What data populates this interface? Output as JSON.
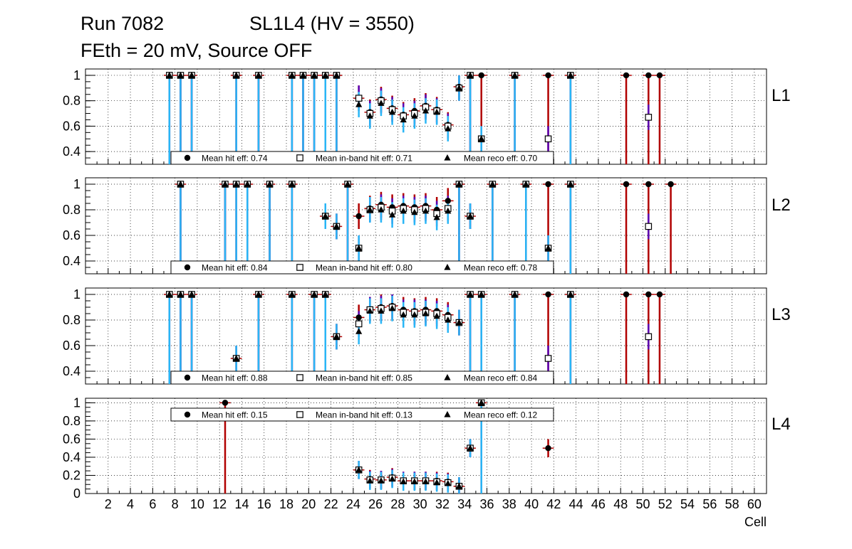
{
  "header": {
    "run": "Run 7082",
    "chamber": "SL1L4 (HV = 3550)",
    "conditions": "FEth = 20 mV, Source OFF"
  },
  "colors": {
    "hit": "#000000",
    "hit_err": "#b10000",
    "inband_err": "#5a00b4",
    "reco_err": "#29b6f6",
    "grid": "#000000"
  },
  "chart_data": [
    {
      "type": "scatter",
      "panel": "L1",
      "xlabel": "Cell",
      "xlim": [
        0,
        61
      ],
      "ylim": [
        0.3,
        1.05
      ],
      "yticks": [
        0.4,
        0.6,
        0.8,
        1
      ],
      "ytick_labels": [
        "0.4",
        "0.6",
        "0.8",
        "1"
      ],
      "legend": [
        {
          "marker": "circle",
          "label": "Mean hit  eff: 0.74"
        },
        {
          "marker": "square",
          "label": "Mean in-band hit eff: 0.71"
        },
        {
          "marker": "triangle",
          "label": "Mean reco eff: 0.70"
        }
      ],
      "points": [
        {
          "cell": 7.5,
          "hit": 1,
          "inband": 1,
          "reco": 1
        },
        {
          "cell": 8.5,
          "hit": 1,
          "inband": 1,
          "reco": 1
        },
        {
          "cell": 9.5,
          "hit": 1,
          "inband": 1,
          "reco": 1
        },
        {
          "cell": 13.5,
          "hit": 1,
          "inband": 1,
          "reco": 1
        },
        {
          "cell": 15.5,
          "hit": 1,
          "inband": 1,
          "reco": 1
        },
        {
          "cell": 18.5,
          "hit": 1,
          "inband": 1,
          "reco": 1
        },
        {
          "cell": 19.5,
          "hit": 1,
          "inband": 1,
          "reco": 1
        },
        {
          "cell": 20.5,
          "hit": 1,
          "inband": 1,
          "reco": 1
        },
        {
          "cell": 21.5,
          "hit": 1,
          "inband": 1,
          "reco": 1
        },
        {
          "cell": 22.5,
          "hit": 1,
          "inband": 1,
          "reco": 1
        },
        {
          "cell": 24.5,
          "hit": 0.82,
          "inband": 0.82,
          "reco": 0.77
        },
        {
          "cell": 25.5,
          "hit": 0.71,
          "inband": 0.7,
          "reco": 0.68
        },
        {
          "cell": 26.5,
          "hit": 0.81,
          "inband": 0.8,
          "reco": 0.78
        },
        {
          "cell": 27.5,
          "hit": 0.74,
          "inband": 0.73,
          "reco": 0.71
        },
        {
          "cell": 28.5,
          "hit": 0.69,
          "inband": 0.68,
          "reco": 0.65
        },
        {
          "cell": 29.5,
          "hit": 0.72,
          "inband": 0.7,
          "reco": 0.68
        },
        {
          "cell": 30.5,
          "hit": 0.76,
          "inband": 0.75,
          "reco": 0.72
        },
        {
          "cell": 31.5,
          "hit": 0.73,
          "inband": 0.72,
          "reco": 0.71
        },
        {
          "cell": 32.5,
          "hit": 0.61,
          "inband": 0.6,
          "reco": 0.58
        },
        {
          "cell": 33.5,
          "hit": 0.91,
          "inband": 0.9,
          "reco": 0.9
        },
        {
          "cell": 34.5,
          "hit": 1,
          "inband": 1,
          "reco": 1
        },
        {
          "cell": 35.5,
          "hit": 1,
          "inband": 0.5,
          "reco": 0.5
        },
        {
          "cell": 38.5,
          "hit": 1,
          "inband": 1,
          "reco": 1
        },
        {
          "cell": 41.5,
          "hit": 1,
          "inband": 0.5,
          "reco": null
        },
        {
          "cell": 43.5,
          "hit": 1,
          "inband": 1,
          "reco": 1
        },
        {
          "cell": 48.5,
          "hit": 1,
          "inband": null,
          "reco": null
        },
        {
          "cell": 50.5,
          "hit": 1,
          "inband": 0.67,
          "reco": null
        },
        {
          "cell": 51.5,
          "hit": 1,
          "inband": null,
          "reco": null
        }
      ]
    },
    {
      "type": "scatter",
      "panel": "L2",
      "xlabel": "Cell",
      "xlim": [
        0,
        61
      ],
      "ylim": [
        0.3,
        1.05
      ],
      "yticks": [
        0.4,
        0.6,
        0.8,
        1
      ],
      "ytick_labels": [
        "0.4",
        "0.6",
        "0.8",
        "1"
      ],
      "legend": [
        {
          "marker": "circle",
          "label": "Mean hit  eff: 0.84"
        },
        {
          "marker": "square",
          "label": "Mean in-band hit eff: 0.80"
        },
        {
          "marker": "triangle",
          "label": "Mean reco eff: 0.78"
        }
      ],
      "points": [
        {
          "cell": 8.5,
          "hit": 1,
          "inband": 1,
          "reco": 1
        },
        {
          "cell": 12.5,
          "hit": 1,
          "inband": 1,
          "reco": 1
        },
        {
          "cell": 13.5,
          "hit": 1,
          "inband": 1,
          "reco": 1
        },
        {
          "cell": 14.5,
          "hit": 1,
          "inband": 1,
          "reco": 1
        },
        {
          "cell": 16.5,
          "hit": 1,
          "inband": 1,
          "reco": 1
        },
        {
          "cell": 18.5,
          "hit": 1,
          "inband": 1,
          "reco": 1
        },
        {
          "cell": 21.5,
          "hit": 0.75,
          "inband": 0.75,
          "reco": 0.75
        },
        {
          "cell": 22.5,
          "hit": 0.67,
          "inband": 0.67,
          "reco": 0.67
        },
        {
          "cell": 23.5,
          "hit": 1,
          "inband": 1,
          "reco": 1
        },
        {
          "cell": 24.5,
          "hit": 0.75,
          "inband": 0.5,
          "reco": 0.5
        },
        {
          "cell": 25.5,
          "hit": 0.81,
          "inband": 0.8,
          "reco": 0.8
        },
        {
          "cell": 26.5,
          "hit": 0.84,
          "inband": 0.82,
          "reco": 0.8
        },
        {
          "cell": 27.5,
          "hit": 0.82,
          "inband": 0.79,
          "reco": 0.76
        },
        {
          "cell": 28.5,
          "hit": 0.83,
          "inband": 0.81,
          "reco": 0.79
        },
        {
          "cell": 29.5,
          "hit": 0.82,
          "inband": 0.8,
          "reco": 0.78
        },
        {
          "cell": 30.5,
          "hit": 0.83,
          "inband": 0.81,
          "reco": 0.79
        },
        {
          "cell": 31.5,
          "hit": 0.8,
          "inband": 0.77,
          "reco": 0.74
        },
        {
          "cell": 32.5,
          "hit": 0.87,
          "inband": 0.81,
          "reco": 0.79
        },
        {
          "cell": 33.5,
          "hit": 1,
          "inband": 1,
          "reco": 1
        },
        {
          "cell": 34.5,
          "hit": 0.75,
          "inband": 0.75,
          "reco": 0.75
        },
        {
          "cell": 36.5,
          "hit": 1,
          "inband": 1,
          "reco": 1
        },
        {
          "cell": 39.5,
          "hit": 1,
          "inband": 1,
          "reco": 1
        },
        {
          "cell": 41.5,
          "hit": 1,
          "inband": 0.5,
          "reco": 0.5
        },
        {
          "cell": 43.5,
          "hit": 1,
          "inband": 1,
          "reco": 1
        },
        {
          "cell": 48.5,
          "hit": 1,
          "inband": null,
          "reco": null
        },
        {
          "cell": 50.5,
          "hit": 1,
          "inband": 0.67,
          "reco": null
        },
        {
          "cell": 52.5,
          "hit": 1,
          "inband": null,
          "reco": null
        }
      ]
    },
    {
      "type": "scatter",
      "panel": "L3",
      "xlabel": "Cell",
      "xlim": [
        0,
        61
      ],
      "ylim": [
        0.3,
        1.05
      ],
      "yticks": [
        0.4,
        0.6,
        0.8,
        1
      ],
      "ytick_labels": [
        "0.4",
        "0.6",
        "0.8",
        "1"
      ],
      "legend": [
        {
          "marker": "circle",
          "label": "Mean hit  eff: 0.88"
        },
        {
          "marker": "square",
          "label": "Mean in-band hit eff: 0.85"
        },
        {
          "marker": "triangle",
          "label": "Mean reco eff: 0.84"
        }
      ],
      "points": [
        {
          "cell": 7.5,
          "hit": 1,
          "inband": 1,
          "reco": 1
        },
        {
          "cell": 8.5,
          "hit": 1,
          "inband": 1,
          "reco": 1
        },
        {
          "cell": 9.5,
          "hit": 1,
          "inband": 1,
          "reco": 1
        },
        {
          "cell": 13.5,
          "hit": 0.5,
          "inband": 0.5,
          "reco": 0.5
        },
        {
          "cell": 15.5,
          "hit": 1,
          "inband": 1,
          "reco": 1
        },
        {
          "cell": 18.5,
          "hit": 1,
          "inband": 1,
          "reco": 1
        },
        {
          "cell": 20.5,
          "hit": 1,
          "inband": 1,
          "reco": 1
        },
        {
          "cell": 21.5,
          "hit": 1,
          "inband": 1,
          "reco": 1
        },
        {
          "cell": 22.5,
          "hit": 0.67,
          "inband": 0.67,
          "reco": 0.67
        },
        {
          "cell": 24.5,
          "hit": 0.82,
          "inband": 0.77,
          "reco": 0.71
        },
        {
          "cell": 25.5,
          "hit": 0.88,
          "inband": 0.88,
          "reco": 0.87
        },
        {
          "cell": 26.5,
          "hit": 0.9,
          "inband": 0.89,
          "reco": 0.87
        },
        {
          "cell": 27.5,
          "hit": 0.91,
          "inband": 0.9,
          "reco": 0.89
        },
        {
          "cell": 28.5,
          "hit": 0.88,
          "inband": 0.86,
          "reco": 0.84
        },
        {
          "cell": 29.5,
          "hit": 0.87,
          "inband": 0.86,
          "reco": 0.84
        },
        {
          "cell": 30.5,
          "hit": 0.88,
          "inband": 0.86,
          "reco": 0.85
        },
        {
          "cell": 31.5,
          "hit": 0.87,
          "inband": 0.85,
          "reco": 0.83
        },
        {
          "cell": 32.5,
          "hit": 0.84,
          "inband": 0.82,
          "reco": 0.8
        },
        {
          "cell": 33.5,
          "hit": 0.78,
          "inband": 0.78,
          "reco": 0.78
        },
        {
          "cell": 34.5,
          "hit": 1,
          "inband": 1,
          "reco": 1
        },
        {
          "cell": 35.5,
          "hit": 1,
          "inband": 1,
          "reco": 1
        },
        {
          "cell": 38.5,
          "hit": 1,
          "inband": 1,
          "reco": 1
        },
        {
          "cell": 41.5,
          "hit": 1,
          "inband": 0.5,
          "reco": null
        },
        {
          "cell": 43.5,
          "hit": 1,
          "inband": 1,
          "reco": 1
        },
        {
          "cell": 48.5,
          "hit": 1,
          "inband": null,
          "reco": null
        },
        {
          "cell": 50.5,
          "hit": 1,
          "inband": 0.67,
          "reco": null
        },
        {
          "cell": 51.5,
          "hit": 1,
          "inband": null,
          "reco": null
        }
      ]
    },
    {
      "type": "scatter",
      "panel": "L4",
      "xlabel": "Cell",
      "xlim": [
        0,
        61
      ],
      "ylim": [
        0,
        1.05
      ],
      "yticks": [
        0,
        0.2,
        0.4,
        0.6,
        0.8,
        1
      ],
      "ytick_labels": [
        "0",
        "0.2",
        "0.4",
        "0.6",
        "0.8",
        "1"
      ],
      "legend": [
        {
          "marker": "circle",
          "label": "Mean hit  eff: 0.15"
        },
        {
          "marker": "square",
          "label": "Mean in-band hit eff: 0.13"
        },
        {
          "marker": "triangle",
          "label": "Mean reco eff: 0.12"
        }
      ],
      "points": [
        {
          "cell": 12.5,
          "hit": 1,
          "inband": null,
          "reco": null
        },
        {
          "cell": 24.5,
          "hit": 0.26,
          "inband": 0.26,
          "reco": 0.26
        },
        {
          "cell": 25.5,
          "hit": 0.16,
          "inband": 0.15,
          "reco": 0.14
        },
        {
          "cell": 26.5,
          "hit": 0.15,
          "inband": 0.15,
          "reco": 0.14
        },
        {
          "cell": 27.5,
          "hit": 0.18,
          "inband": 0.17,
          "reco": 0.16
        },
        {
          "cell": 28.5,
          "hit": 0.14,
          "inband": 0.14,
          "reco": 0.13
        },
        {
          "cell": 29.5,
          "hit": 0.14,
          "inband": 0.14,
          "reco": 0.13
        },
        {
          "cell": 30.5,
          "hit": 0.14,
          "inband": 0.14,
          "reco": 0.13
        },
        {
          "cell": 31.5,
          "hit": 0.14,
          "inband": 0.13,
          "reco": 0.12
        },
        {
          "cell": 32.5,
          "hit": 0.13,
          "inband": 0.12,
          "reco": 0.11
        },
        {
          "cell": 33.5,
          "hit": 0.08,
          "inband": 0.08,
          "reco": 0.08
        },
        {
          "cell": 34.5,
          "hit": 0.5,
          "inband": 0.5,
          "reco": 0.5
        },
        {
          "cell": 35.5,
          "hit": 1,
          "inband": 1,
          "reco": 1
        },
        {
          "cell": 41.5,
          "hit": 0.5,
          "inband": null,
          "reco": null
        }
      ]
    }
  ],
  "x_axis": {
    "ticks": [
      "2",
      "4",
      "6",
      "8",
      "10",
      "12",
      "14",
      "16",
      "18",
      "20",
      "22",
      "24",
      "26",
      "28",
      "30",
      "32",
      "34",
      "36",
      "38",
      "40",
      "42",
      "44",
      "46",
      "48",
      "50",
      "52",
      "54",
      "56",
      "58",
      "60"
    ],
    "label": "Cell"
  }
}
